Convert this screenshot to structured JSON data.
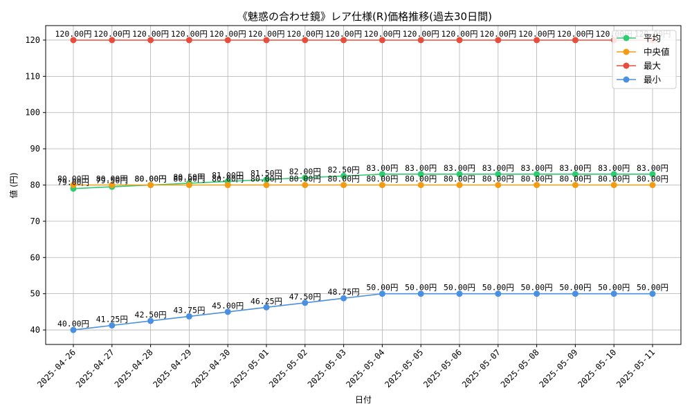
{
  "chart_data": {
    "type": "line",
    "title": "《魅惑の合わせ鏡》レア仕様(R)価格推移(過去30日間)",
    "xlabel": "日付",
    "ylabel": "値 (円)",
    "ylim": [
      36,
      124
    ],
    "yticks": [
      40,
      50,
      60,
      70,
      80,
      90,
      100,
      110,
      120
    ],
    "grid": true,
    "legend_position": "top-right",
    "value_suffix": "円",
    "categories": [
      "2025-04-26",
      "2025-04-27",
      "2025-04-28",
      "2025-04-29",
      "2025-04-30",
      "2025-05-01",
      "2025-05-02",
      "2025-05-03",
      "2025-05-04",
      "2025-05-05",
      "2025-05-06",
      "2025-05-07",
      "2025-05-08",
      "2025-05-09",
      "2025-05-10",
      "2025-05-11"
    ],
    "series": [
      {
        "name": "平均",
        "color": "#2ecc71",
        "values": [
          79.0,
          79.5,
          80.0,
          80.5,
          81.0,
          81.5,
          82.0,
          82.5,
          83.0,
          83.0,
          83.0,
          83.0,
          83.0,
          83.0,
          83.0,
          83.0
        ]
      },
      {
        "name": "中央値",
        "color": "#f39c12",
        "values": [
          80.0,
          80.0,
          80.0,
          80.0,
          80.0,
          80.0,
          80.0,
          80.0,
          80.0,
          80.0,
          80.0,
          80.0,
          80.0,
          80.0,
          80.0,
          80.0
        ]
      },
      {
        "name": "最大",
        "color": "#e74c3c",
        "values": [
          120.0,
          120.0,
          120.0,
          120.0,
          120.0,
          120.0,
          120.0,
          120.0,
          120.0,
          120.0,
          120.0,
          120.0,
          120.0,
          120.0,
          120.0,
          120.0
        ]
      },
      {
        "name": "最小",
        "color": "#4a90e2",
        "values": [
          40.0,
          41.25,
          42.5,
          43.75,
          45.0,
          46.25,
          47.5,
          48.75,
          50.0,
          50.0,
          50.0,
          50.0,
          50.0,
          50.0,
          50.0,
          50.0
        ]
      }
    ]
  }
}
